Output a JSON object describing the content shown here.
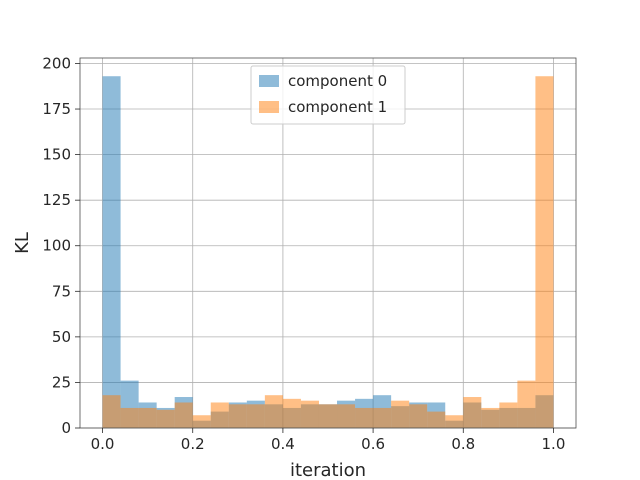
{
  "chart_data": {
    "type": "bar",
    "title": "",
    "xlabel": "iteration",
    "ylabel": "KL",
    "xlim": [
      -0.05,
      1.05
    ],
    "ylim": [
      0,
      203
    ],
    "xticks": [
      0.0,
      0.2,
      0.4,
      0.6,
      0.8,
      1.0
    ],
    "xtick_labels": [
      "0.0",
      "0.2",
      "0.4",
      "0.6",
      "0.8",
      "1.0"
    ],
    "yticks": [
      0,
      25,
      50,
      75,
      100,
      125,
      150,
      175,
      200
    ],
    "ytick_labels": [
      "0",
      "25",
      "50",
      "75",
      "100",
      "125",
      "150",
      "175",
      "200"
    ],
    "grid": true,
    "legend_position": "top-center",
    "bin_edges": [
      0.0,
      0.04,
      0.08,
      0.12,
      0.16,
      0.2,
      0.24,
      0.28,
      0.32,
      0.36,
      0.4,
      0.44,
      0.48,
      0.52,
      0.56,
      0.6,
      0.64,
      0.68,
      0.72,
      0.76,
      0.8,
      0.84,
      0.88,
      0.92,
      0.96,
      1.0
    ],
    "series": [
      {
        "name": "component 0",
        "color": "#1f77b4",
        "opacity": 0.5,
        "values": [
          193,
          26,
          14,
          11,
          17,
          4,
          9,
          14,
          15,
          13,
          11,
          13,
          13,
          15,
          16,
          18,
          12,
          14,
          14,
          4,
          14,
          10,
          11,
          11,
          18
        ]
      },
      {
        "name": "component 1",
        "color": "#ff7f0e",
        "opacity": 0.5,
        "values": [
          18,
          11,
          11,
          10,
          14,
          7,
          14,
          13,
          13,
          18,
          16,
          15,
          13,
          13,
          11,
          11,
          15,
          13,
          9,
          7,
          17,
          11,
          14,
          26,
          193
        ]
      }
    ]
  }
}
